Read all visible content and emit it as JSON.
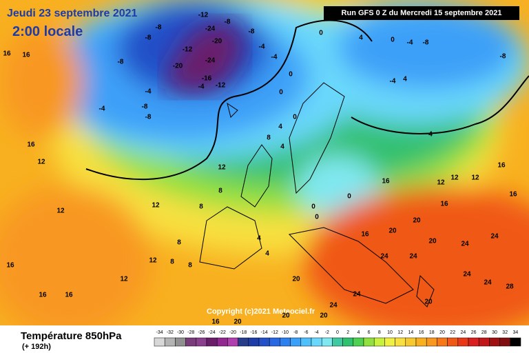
{
  "header": {
    "date": "Jeudi 23 septembre 2021",
    "time": "2:00 locale",
    "run": "Run GFS 0 Z du Mercredi 15 septembre 2021"
  },
  "copyright": "Copyright (c)2021 Meteociel.fr",
  "footer": {
    "title": "Température 850hPa",
    "lead": "(+ 192h)"
  },
  "scale": {
    "ticks": [
      -34,
      -32,
      -30,
      -28,
      -26,
      -24,
      -22,
      -20,
      -18,
      -16,
      -14,
      -12,
      -10,
      -8,
      -6,
      -4,
      -2,
      0,
      2,
      4,
      6,
      8,
      10,
      12,
      14,
      16,
      18,
      20,
      22,
      24,
      26,
      28,
      30,
      32,
      34
    ],
    "colors": [
      "#d8d8d8",
      "#b4b4b4",
      "#909090",
      "#7a3c7a",
      "#8a408a",
      "#6a1e6a",
      "#902890",
      "#b040b0",
      "#283c8c",
      "#1e3ca8",
      "#2450c8",
      "#2868e0",
      "#2c80f0",
      "#3ca0f8",
      "#50c0fa",
      "#6ad8fc",
      "#80e8f0",
      "#40c8a0",
      "#30c070",
      "#50d050",
      "#90e040",
      "#c8f040",
      "#f0f040",
      "#f8e040",
      "#f8c830",
      "#f8b020",
      "#f89820",
      "#f87818",
      "#f05818",
      "#e83818",
      "#d82020",
      "#c01818",
      "#a01010",
      "#801010",
      "#000000"
    ]
  },
  "contour_labels": [
    -24,
    -20,
    -12,
    -20,
    -24,
    -16,
    -4,
    -12,
    -8,
    -12,
    -8,
    -8,
    -8,
    -4,
    -4,
    -8,
    -8,
    -8,
    -4,
    -4,
    0,
    0,
    0,
    4,
    0,
    -4,
    -8,
    -8,
    -4,
    4,
    4,
    4,
    0,
    4,
    8,
    12,
    8,
    8,
    12,
    12,
    12,
    16,
    16,
    16,
    16,
    16,
    16,
    12,
    12,
    8,
    8,
    8,
    4,
    4,
    0,
    0,
    0,
    16,
    20,
    20,
    20,
    24,
    24,
    24,
    24,
    24,
    24,
    28,
    20,
    24,
    24,
    16,
    12,
    12,
    12,
    16,
    16,
    16,
    20,
    20,
    20,
    16,
    20
  ]
}
